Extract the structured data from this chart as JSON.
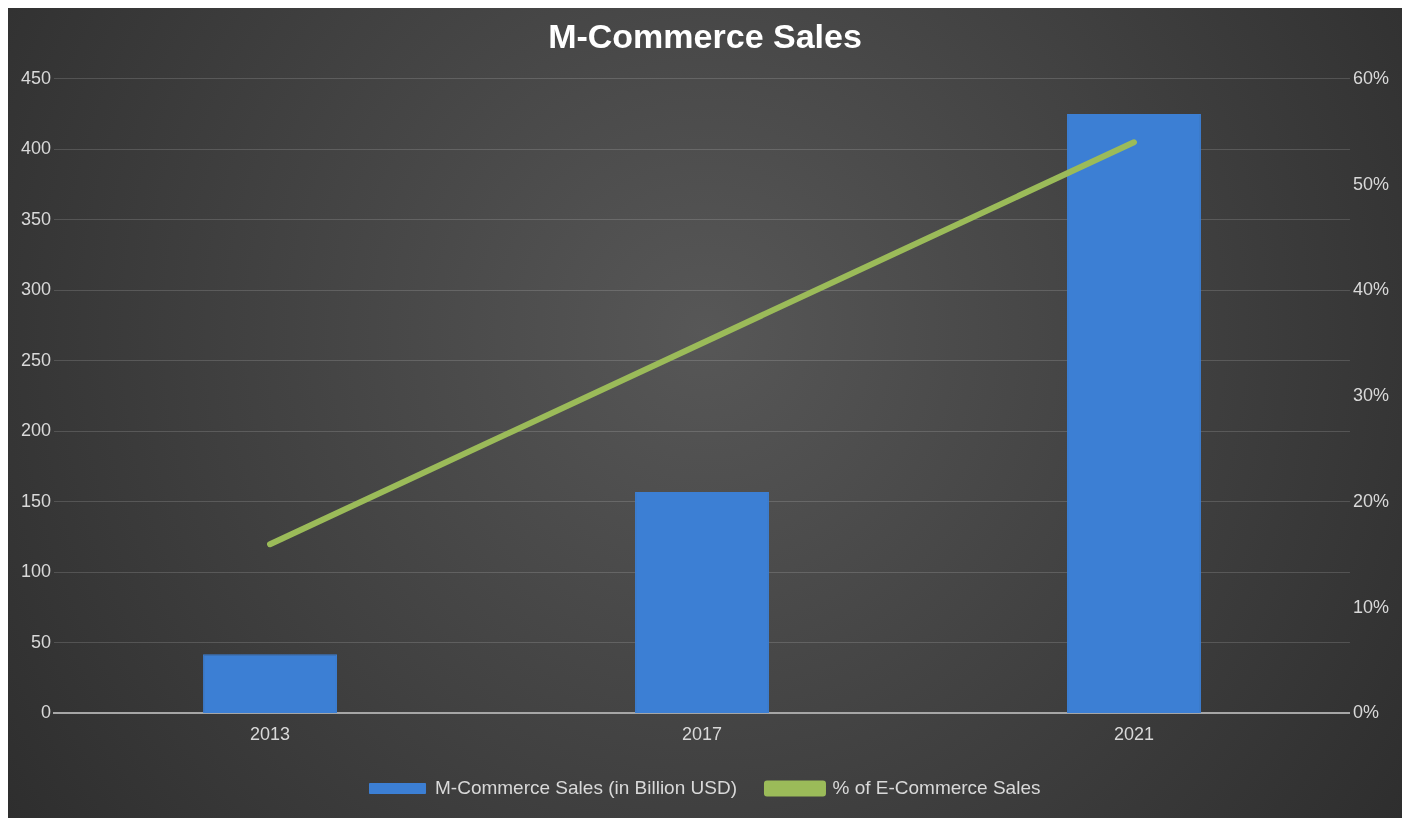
{
  "chart_data": {
    "type": "bar",
    "title": "M-Commerce Sales",
    "categories": [
      "2013",
      "2017",
      "2021"
    ],
    "series": [
      {
        "name": "M-Commerce Sales (in Billion USD)",
        "color": "#3c7fd4",
        "values": [
          42,
          157,
          425
        ]
      },
      {
        "name": "% of E-Commerce Sales",
        "type": "line",
        "axis": "y2",
        "color": "#9bbb59",
        "values": [
          16,
          35,
          54
        ]
      }
    ],
    "ylim": [
      0,
      450
    ],
    "yticks": [
      0,
      50,
      100,
      150,
      200,
      250,
      300,
      350,
      400,
      450
    ],
    "y2lim": [
      0,
      60
    ],
    "y2ticks": [
      {
        "value": 0,
        "label": "0%"
      },
      {
        "value": 10,
        "label": "10%"
      },
      {
        "value": 20,
        "label": "20%"
      },
      {
        "value": 30,
        "label": "30%"
      },
      {
        "value": 40,
        "label": "40%"
      },
      {
        "value": 50,
        "label": "50%"
      },
      {
        "value": 60,
        "label": "60%"
      }
    ],
    "grid": "y",
    "legend": "bottom"
  }
}
